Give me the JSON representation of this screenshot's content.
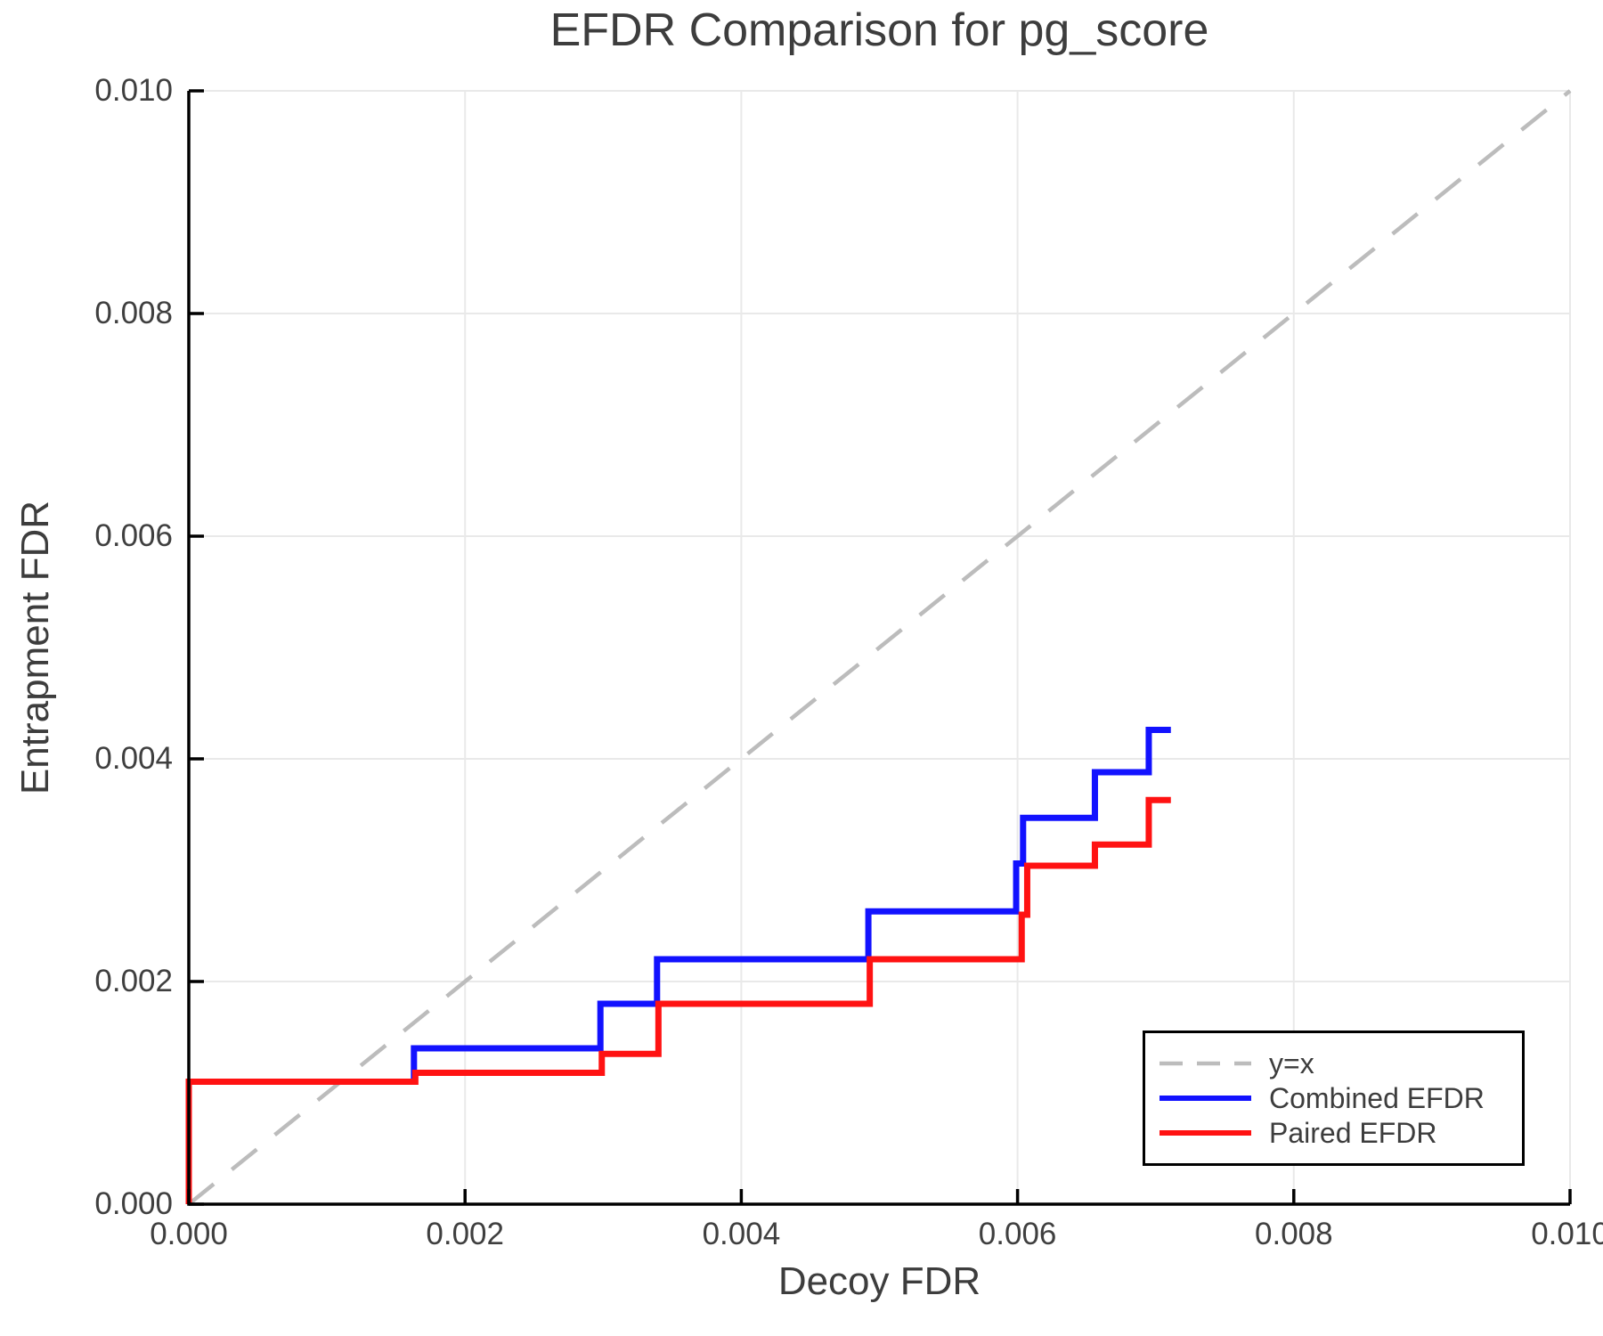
{
  "chart_data": {
    "type": "line",
    "title": "EFDR Comparison for pg_score",
    "xlabel": "Decoy FDR",
    "ylabel": "Entrapment FDR",
    "xlim": [
      0,
      0.01
    ],
    "ylim": [
      0,
      0.01
    ],
    "grid": true,
    "legend_position": "bottom-right",
    "x_ticks": {
      "values": [
        0,
        0.002,
        0.004,
        0.006,
        0.008,
        0.01
      ],
      "labels": [
        "0.000",
        "0.002",
        "0.004",
        "0.006",
        "0.008",
        "0.010"
      ]
    },
    "y_ticks": {
      "values": [
        0,
        0.002,
        0.004,
        0.006,
        0.008,
        0.01
      ],
      "labels": [
        "0.000",
        "0.002",
        "0.004",
        "0.006",
        "0.008",
        "0.010"
      ]
    },
    "reference_line": {
      "label": "y=x",
      "style": "dashed",
      "color": "#bcbcbc",
      "from": [
        0,
        0
      ],
      "to": [
        0.01,
        0.01
      ]
    },
    "series": [
      {
        "name": "Combined EFDR",
        "color": "#1212ff",
        "style": "solid",
        "points": [
          [
            0,
            0
          ],
          [
            0,
            0.0011
          ],
          [
            0.00163,
            0.0011
          ],
          [
            0.00163,
            0.0014
          ],
          [
            0.00298,
            0.0014
          ],
          [
            0.00298,
            0.0018
          ],
          [
            0.00339,
            0.0018
          ],
          [
            0.00339,
            0.0022
          ],
          [
            0.00492,
            0.0022
          ],
          [
            0.00492,
            0.00263
          ],
          [
            0.00599,
            0.00263
          ],
          [
            0.00599,
            0.00306
          ],
          [
            0.00604,
            0.00306
          ],
          [
            0.00604,
            0.00347
          ],
          [
            0.00656,
            0.00347
          ],
          [
            0.00656,
            0.00388
          ],
          [
            0.00695,
            0.00388
          ],
          [
            0.00695,
            0.00426
          ],
          [
            0.00711,
            0.00426
          ]
        ]
      },
      {
        "name": "Paired EFDR",
        "color": "#ff1212",
        "style": "solid",
        "points": [
          [
            0,
            0
          ],
          [
            0,
            0.0011
          ],
          [
            0.00164,
            0.0011
          ],
          [
            0.00164,
            0.00118
          ],
          [
            0.00299,
            0.00118
          ],
          [
            0.00299,
            0.00135
          ],
          [
            0.0034,
            0.00135
          ],
          [
            0.0034,
            0.0018
          ],
          [
            0.00493,
            0.0018
          ],
          [
            0.00493,
            0.0022
          ],
          [
            0.00603,
            0.0022
          ],
          [
            0.00603,
            0.0026
          ],
          [
            0.00607,
            0.0026
          ],
          [
            0.00607,
            0.00304
          ],
          [
            0.00656,
            0.00304
          ],
          [
            0.00656,
            0.00323
          ],
          [
            0.00695,
            0.00323
          ],
          [
            0.00695,
            0.00363
          ],
          [
            0.00711,
            0.00363
          ]
        ]
      }
    ],
    "grid_color": "#e9e9e9",
    "axis_color": "#000000",
    "text_color": "#3d3d3d"
  }
}
